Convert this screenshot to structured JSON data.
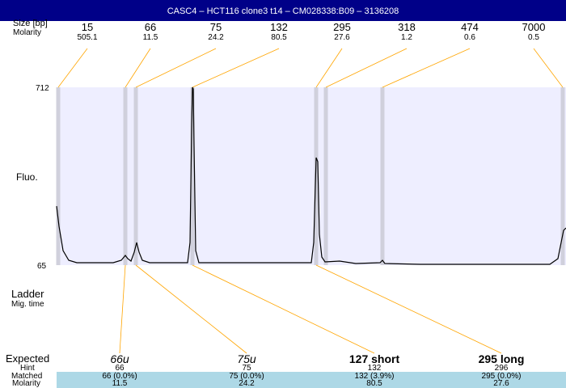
{
  "title": "CASC4 – HCT116 clone3 t14 – CM028338:B09 – 3136208",
  "labels": {
    "size": "Size [bp]",
    "molarity": "Molarity",
    "fluo": "Fluo.",
    "ymax": "712",
    "ymin": "65",
    "ladder": "Ladder",
    "migtime": "Mig. time",
    "expected": "Expected",
    "hint": "Hint",
    "matched": "Matched",
    "molarity2": "Molarity"
  },
  "ladder": [
    {
      "size": "15",
      "molarity": "505.1"
    },
    {
      "size": "66",
      "molarity": "11.5"
    },
    {
      "size": "75",
      "molarity": "24.2"
    },
    {
      "size": "132",
      "molarity": "80.5"
    },
    {
      "size": "295",
      "molarity": "27.6"
    },
    {
      "size": "318",
      "molarity": "1.2"
    },
    {
      "size": "474",
      "molarity": "0.6"
    },
    {
      "size": "7000",
      "molarity": "0.5"
    }
  ],
  "expected": [
    {
      "name": "66u",
      "hint": "66",
      "matched": "66 (0.0%)",
      "molarity": "11.5"
    },
    {
      "name": "75u",
      "hint": "75",
      "matched": "75 (0.0%)",
      "molarity": "24.2"
    },
    {
      "name": "127 short",
      "hint": "132",
      "matched": "132 (3.9%)",
      "molarity": "80.5"
    },
    {
      "name": "295 long",
      "hint": "296",
      "matched": "295 (0.0%)",
      "molarity": "27.6"
    }
  ],
  "colors": {
    "title_bg": "#000088",
    "plot_bg": "#eeeeff",
    "band": "#d0d0dc",
    "leader": "#ffa500",
    "matched_bg": "#add8e6"
  }
}
